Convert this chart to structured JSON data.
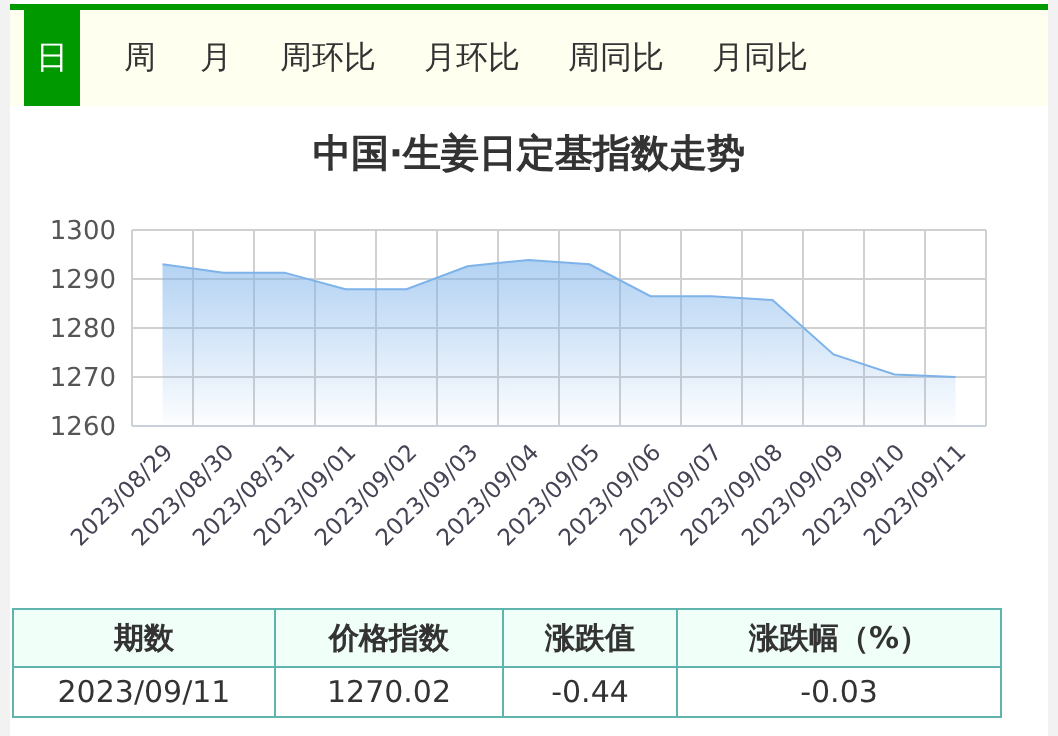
{
  "chart_data": {
    "type": "area",
    "title": "中国·生姜日定基指数走势",
    "categories": [
      "2023/08/29",
      "2023/08/30",
      "2023/08/31",
      "2023/09/01",
      "2023/09/02",
      "2023/09/03",
      "2023/09/04",
      "2023/09/05",
      "2023/09/06",
      "2023/09/07",
      "2023/09/08",
      "2023/09/09",
      "2023/09/10",
      "2023/09/11"
    ],
    "series": [
      {
        "color": "#7eb3ea",
        "values": [
          1293.0,
          1291.3,
          1291.3,
          1287.9,
          1287.9,
          1292.6,
          1293.9,
          1293.0,
          1286.5,
          1286.5,
          1285.7,
          1274.6,
          1270.5,
          1270.0
        ]
      }
    ],
    "ylim": [
      1260,
      1300
    ],
    "yticks": [
      1260,
      1270,
      1280,
      1290,
      1300
    ],
    "grid": true,
    "marker": "none",
    "annotations": [
      "日",
      "周",
      "月",
      "周环比",
      "月环比",
      "周同比",
      "月同比",
      "期数",
      "价格指数",
      "涨跌值",
      "涨跌幅（%）",
      "2023/09/11",
      "1270.02",
      "-0.44",
      "-0.03"
    ]
  }
}
